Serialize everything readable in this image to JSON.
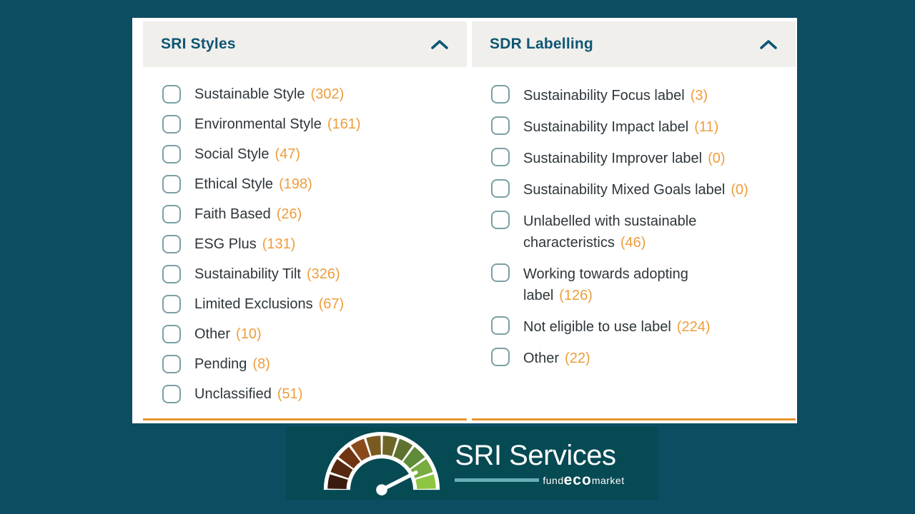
{
  "colors": {
    "page_background": "#0d4d62",
    "logo_strip_background": "#064a53",
    "panel_background": "#ffffff",
    "header_background": "#f0efec",
    "header_text": "#0e5673",
    "label_text": "#2e363b",
    "count_text": "#ee9d3c",
    "rule_orange": "#e8952f",
    "checkbox_border": "#7ba0a3",
    "logo_line_teal": "#67aeb5"
  },
  "panels": [
    {
      "id": "sri-styles",
      "title": "SRI Styles",
      "collapse_icon": "chevron-up",
      "items": [
        {
          "label": "Sustainable Style",
          "count": "(302)"
        },
        {
          "label": "Environmental Style",
          "count": "(161)"
        },
        {
          "label": "Social Style",
          "count": "(47)"
        },
        {
          "label": "Ethical Style",
          "count": "(198)"
        },
        {
          "label": "Faith Based",
          "count": "(26)"
        },
        {
          "label": "ESG Plus",
          "count": "(131)"
        },
        {
          "label": "Sustainability Tilt",
          "count": "(326)"
        },
        {
          "label": "Limited Exclusions",
          "count": "(67)"
        },
        {
          "label": "Other",
          "count": "(10)"
        },
        {
          "label": "Pending",
          "count": "(8)"
        },
        {
          "label": "Unclassified",
          "count": "(51)"
        }
      ]
    },
    {
      "id": "sdr-labelling",
      "title": "SDR Labelling",
      "collapse_icon": "chevron-up",
      "items": [
        {
          "label": "Sustainability Focus label",
          "count": "(3)"
        },
        {
          "label": "Sustainability Impact label",
          "count": "(11)"
        },
        {
          "label": "Sustainability Improver label",
          "count": "(0)"
        },
        {
          "label": "Sustainability Mixed Goals label",
          "count": "(0)"
        },
        {
          "label": "Unlabelled with sustainable characteristics",
          "count": "(46)"
        },
        {
          "label": "Working towards adopting label",
          "count": "(126)"
        },
        {
          "label": "Not eligible to use label",
          "count": "(224)"
        },
        {
          "label": "Other",
          "count": "(22)"
        }
      ]
    }
  ],
  "logo": {
    "title": "SRI Services",
    "sub_fund": "fund",
    "sub_eco": "eco",
    "sub_market": "market",
    "gauge_icon": "speedometer-gauge",
    "gauge_colors": [
      "#3a1b0d",
      "#56280f",
      "#713413",
      "#8a4a1a",
      "#7b5a20",
      "#6d6527",
      "#5e7230",
      "#5f8c38",
      "#79ab41",
      "#8ec641"
    ],
    "needle_color": "#ffffff"
  }
}
